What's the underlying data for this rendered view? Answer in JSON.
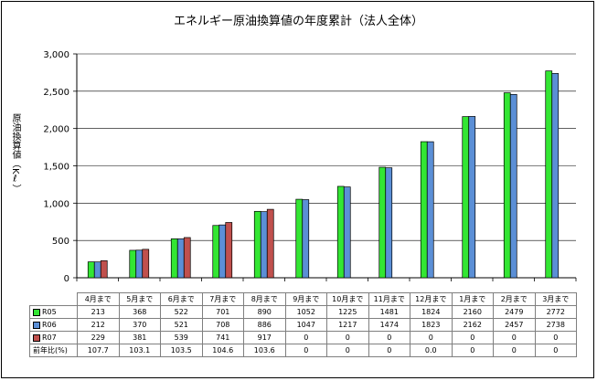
{
  "chart_data": {
    "type": "bar",
    "title": "エネルギー原油換算値の年度累計（法人全体）",
    "ylabel": "原油換算値（Kℓ）",
    "xlabel": "",
    "ylim": [
      0,
      3000
    ],
    "yticks": [
      "0",
      "500",
      "1,000",
      "1,500",
      "2,000",
      "2,500",
      "3,000"
    ],
    "grid": true,
    "categories": [
      "4月まで",
      "5月まで",
      "6月まで",
      "7月まで",
      "8月まで",
      "9月まで",
      "10月まで",
      "11月まで",
      "12月まで",
      "1月まで",
      "2月まで",
      "3月まで"
    ],
    "series": [
      {
        "name": "R05",
        "color": "#33e633",
        "values": [
          213,
          368,
          522,
          701,
          890,
          1052,
          1225,
          1481,
          1824,
          2160,
          2479,
          2772
        ]
      },
      {
        "name": "R06",
        "color": "#5b8fd6",
        "values": [
          212,
          370,
          521,
          708,
          886,
          1047,
          1217,
          1474,
          1823,
          2162,
          2457,
          2738
        ]
      },
      {
        "name": "R07",
        "color": "#c0504d",
        "values": [
          229,
          381,
          539,
          741,
          917,
          0,
          0,
          0,
          0,
          0,
          0,
          0
        ]
      }
    ],
    "table_extra_row": {
      "name": "前年比(%)",
      "values": [
        "107.7",
        "103.1",
        "103.5",
        "104.6",
        "103.6",
        "0",
        "0",
        "0",
        "0.0",
        "0",
        "0",
        "0"
      ]
    }
  }
}
